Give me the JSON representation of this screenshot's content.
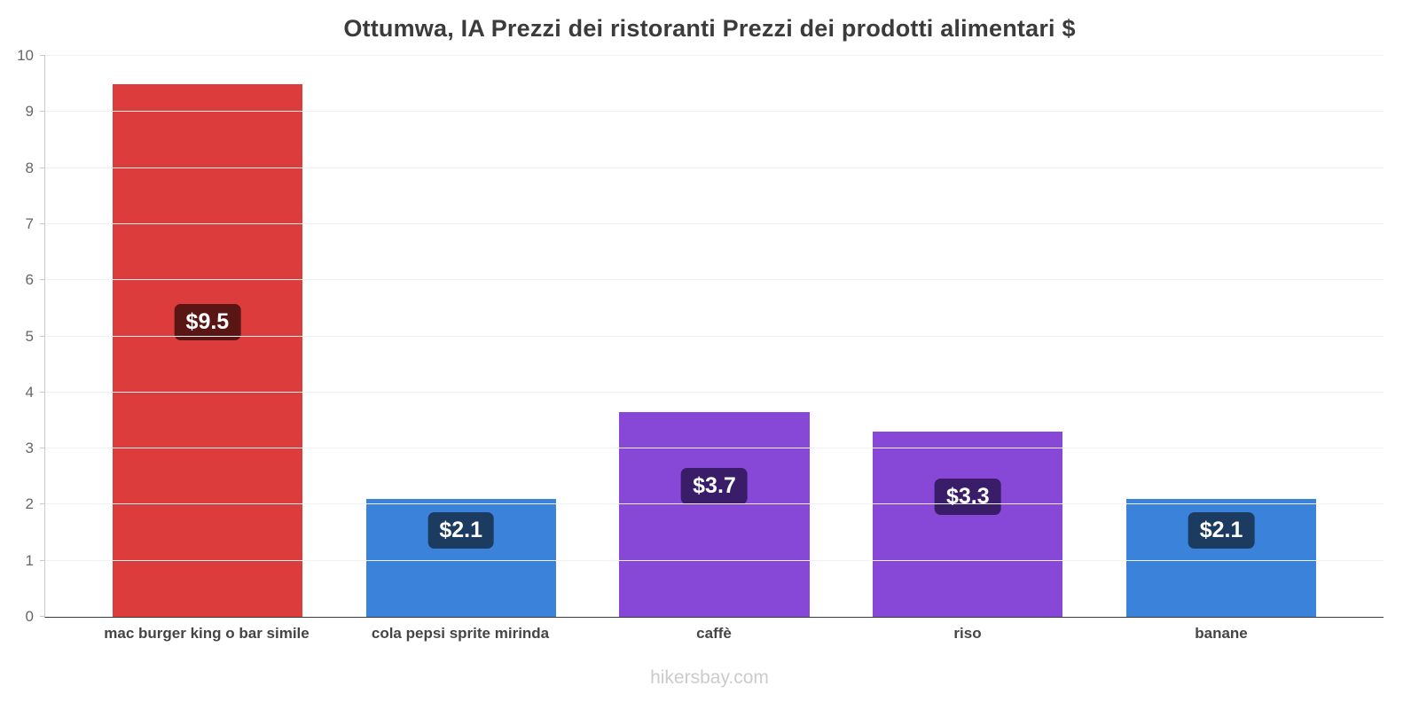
{
  "title": "Ottumwa, IA Prezzi dei ristoranti Prezzi dei prodotti alimentari $",
  "footer": "hikersbay.com",
  "chart_data": {
    "type": "bar",
    "title": "Ottumwa, IA Prezzi dei ristoranti Prezzi dei prodotti alimentari $",
    "categories": [
      "mac burger king o bar simile",
      "cola pepsi sprite mirinda",
      "caffè",
      "riso",
      "banane"
    ],
    "values": [
      9.5,
      2.1,
      3.65,
      3.3,
      2.1
    ],
    "value_labels": [
      "$9.5",
      "$2.1",
      "$3.7",
      "$3.3",
      "$2.1"
    ],
    "bar_colors": [
      "#dc3c3c",
      "#3b82db",
      "#8748d8",
      "#8748d8",
      "#3b82db"
    ],
    "badge_colors": [
      "#5a1515",
      "#1c3b61",
      "#3a1d69",
      "#3a1d69",
      "#1c3b61"
    ],
    "xlabel": "",
    "ylabel": "",
    "ylim": [
      0,
      10
    ],
    "yticks": [
      0,
      1,
      2,
      3,
      4,
      5,
      6,
      7,
      8,
      9,
      10
    ],
    "grid": true,
    "legend": false,
    "currency": "$",
    "watermark": "hikersbay.com"
  }
}
